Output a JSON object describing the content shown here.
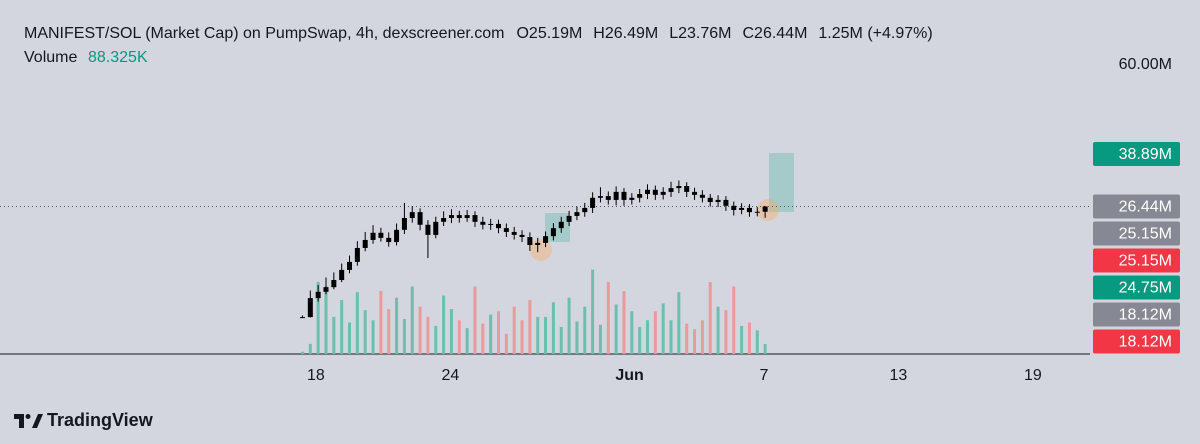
{
  "chart_data": {
    "type": "candlestick",
    "title": "MANIFEST/SOL (Market Cap) on PumpSwap, 4h, dexscreener.com",
    "header_values": [
      "O25.19M",
      "H26.49M",
      "L23.76M",
      "C26.44M",
      "1.25M (+4.97%)"
    ],
    "volume_title": "Volume",
    "volume_value": "88.325K",
    "x": [
      17.4,
      17.75,
      18.1,
      18.45,
      18.8,
      19.15,
      19.5,
      19.85,
      20.2,
      20.55,
      20.9,
      21.25,
      21.6,
      21.95,
      22.3,
      22.65,
      23.0,
      23.35,
      23.7,
      24.05,
      24.4,
      24.75,
      25.1,
      25.45,
      25.8,
      26.15,
      26.5,
      26.85,
      27.2,
      27.55,
      27.9,
      28.25,
      28.6,
      28.95,
      29.3,
      29.65,
      30.0,
      30.35,
      30.7,
      31.05,
      31.4,
      31.75,
      32.1,
      32.45,
      32.8,
      33.15,
      33.5,
      33.85,
      34.2,
      34.55,
      34.9,
      35.25,
      35.6,
      35.95,
      36.3,
      36.65,
      37.0,
      37.35,
      37.7,
      38.05
    ],
    "open": [
      0.2,
      0.2,
      4.7,
      6.2,
      7.3,
      9.0,
      11.4,
      13.3,
      16.6,
      18.5,
      20.2,
      19.0,
      18.0,
      20.9,
      23.7,
      25.1,
      22.1,
      19.7,
      22.8,
      23.7,
      24.4,
      23.7,
      24.4,
      22.8,
      22.1,
      22.3,
      21.3,
      20.4,
      19.7,
      19.2,
      17.3,
      17.8,
      19.4,
      21.3,
      22.8,
      24.2,
      25.1,
      26.1,
      28.5,
      28.9,
      28.0,
      29.9,
      28.0,
      28.5,
      29.4,
      30.4,
      29.2,
      29.9,
      30.8,
      31.3,
      29.9,
      29.2,
      28.5,
      27.5,
      28.0,
      26.6,
      25.6,
      26.1,
      25.1,
      25.19
    ],
    "high": [
      0.6,
      6.5,
      7.8,
      9.6,
      10.8,
      12.9,
      14.8,
      18.2,
      20.4,
      22.0,
      21.4,
      20.3,
      22.4,
      27.3,
      26.5,
      26.0,
      23.2,
      24.0,
      25.3,
      25.8,
      25.4,
      25.6,
      25.3,
      24.0,
      23.5,
      23.3,
      22.4,
      21.6,
      20.8,
      20.3,
      19.0,
      20.5,
      22.5,
      24.0,
      25.4,
      26.4,
      27.3,
      29.8,
      31.0,
      30.0,
      31.2,
      30.8,
      29.6,
      30.6,
      31.7,
      31.4,
      31.0,
      32.3,
      32.6,
      32.2,
      30.9,
      30.3,
      29.4,
      29.1,
      28.9,
      27.6,
      27.2,
      27.0,
      26.3,
      26.49
    ],
    "low": [
      0.1,
      0.1,
      3.9,
      5.6,
      6.8,
      8.5,
      10.6,
      12.4,
      15.8,
      17.6,
      18.1,
      16.9,
      17.2,
      19.9,
      22.6,
      20.8,
      14.2,
      18.9,
      21.8,
      22.5,
      22.6,
      22.8,
      21.6,
      21.0,
      20.9,
      20.1,
      19.2,
      18.6,
      18.0,
      15.9,
      15.6,
      16.8,
      18.4,
      20.2,
      21.8,
      23.2,
      24.0,
      24.9,
      27.4,
      26.9,
      26.7,
      26.6,
      26.9,
      27.4,
      28.2,
      28.0,
      28.1,
      28.7,
      29.6,
      28.7,
      28.0,
      27.4,
      26.4,
      26.3,
      25.4,
      24.3,
      24.6,
      24.0,
      24.1,
      23.76
    ],
    "close": [
      0.2,
      4.7,
      6.2,
      7.3,
      9.0,
      11.4,
      13.3,
      16.6,
      18.5,
      20.2,
      19.0,
      18.0,
      20.9,
      23.7,
      25.1,
      22.1,
      19.7,
      22.8,
      23.7,
      24.4,
      23.7,
      24.4,
      22.8,
      22.1,
      22.3,
      21.3,
      20.4,
      19.7,
      19.2,
      17.3,
      17.8,
      19.4,
      21.3,
      22.8,
      24.2,
      25.1,
      26.1,
      28.5,
      28.9,
      28.0,
      29.9,
      28.0,
      28.5,
      29.4,
      30.4,
      29.2,
      29.9,
      30.8,
      31.3,
      29.9,
      29.2,
      28.5,
      27.5,
      28.0,
      26.6,
      25.6,
      26.1,
      25.1,
      25.19,
      26.44
    ],
    "volume": [
      20,
      90,
      640,
      600,
      330,
      480,
      280,
      550,
      390,
      300,
      560,
      400,
      500,
      310,
      600,
      420,
      330,
      250,
      520,
      400,
      300,
      230,
      600,
      270,
      350,
      380,
      180,
      420,
      300,
      480,
      330,
      330,
      460,
      240,
      500,
      290,
      420,
      750,
      260,
      640,
      440,
      560,
      380,
      240,
      300,
      380,
      450,
      300,
      550,
      270,
      220,
      300,
      640,
      420,
      390,
      600,
      250,
      280,
      210,
      88.325
    ],
    "vlim": [
      0,
      800
    ],
    "candle_color": "#000000",
    "volume_up_color": "#6cbfae",
    "volume_down_color": "#eb9a9a",
    "xlim": [
      3.9,
      52.55
    ],
    "xticks": [
      {
        "value": 18,
        "label": "18"
      },
      {
        "value": 24,
        "label": "24"
      },
      {
        "value": 32,
        "label": "Jun"
      },
      {
        "value": 38,
        "label": "7"
      },
      {
        "value": 44,
        "label": "13"
      },
      {
        "value": 50,
        "label": "19"
      }
    ],
    "ylim": [
      -8.55,
      70.67
    ],
    "yticks": [
      {
        "value": 60,
        "label": "60.00M"
      }
    ],
    "last_price": 26.44,
    "price_labels": [
      {
        "value": 38.89,
        "label": "38.89M",
        "color": "#089981"
      },
      {
        "value": 26.44,
        "label": "26.44M",
        "color": "#868993"
      },
      {
        "value": 25.15,
        "label": "25.15M",
        "color": "#868993"
      },
      {
        "value": 25.15,
        "label": "25.15M",
        "color": "#f23645"
      },
      {
        "value": 24.75,
        "label": "24.75M",
        "color": "#089981"
      },
      {
        "value": 18.12,
        "label": "18.12M",
        "color": "#868993"
      },
      {
        "value": 18.12,
        "label": "18.12M",
        "color": "#f23645"
      }
    ],
    "brand": "TradingView"
  }
}
